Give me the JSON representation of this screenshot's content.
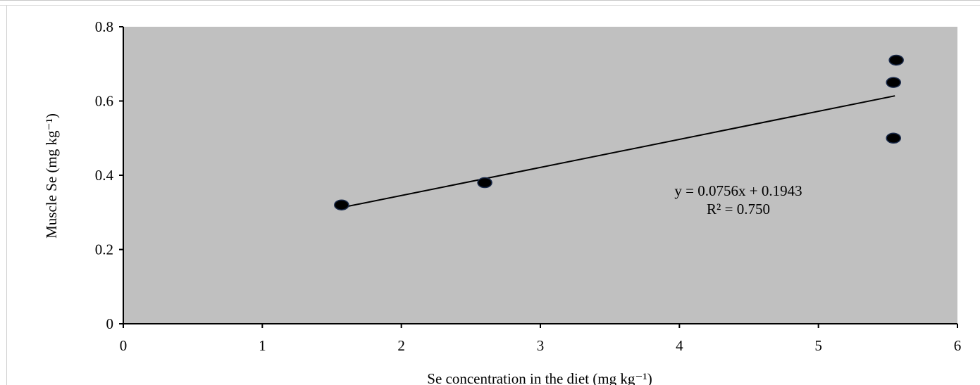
{
  "chart_data": {
    "type": "scatter",
    "title": "",
    "xlabel": "Se concentration in the diet (mg kg⁻¹)",
    "ylabel": "Muscle Se (mg kg⁻¹)",
    "xlim": [
      0,
      6
    ],
    "ylim": [
      0,
      0.8
    ],
    "xticks": [
      0,
      1,
      2,
      3,
      4,
      5,
      6
    ],
    "yticks": [
      0,
      0.2,
      0.4,
      0.6,
      0.8
    ],
    "xtick_labels": [
      "0",
      "1",
      "2",
      "3",
      "4",
      "5",
      "6"
    ],
    "ytick_labels": [
      "0",
      "0.2",
      "0.4",
      "0.6",
      "0.8"
    ],
    "grid": false,
    "background_color": "#c0c0c0",
    "marker_color": "#000000",
    "points": [
      {
        "x": 1.57,
        "y": 0.32
      },
      {
        "x": 2.6,
        "y": 0.38
      },
      {
        "x": 5.54,
        "y": 0.5
      },
      {
        "x": 5.54,
        "y": 0.65
      },
      {
        "x": 5.56,
        "y": 0.71
      }
    ],
    "trendline": {
      "type": "linear",
      "slope": 0.0756,
      "intercept": 0.1943,
      "x_range": [
        1.57,
        5.55
      ]
    },
    "annotations": {
      "equation": "y = 0.0756x + 0.1943",
      "r_squared": "R² = 0.750"
    }
  }
}
